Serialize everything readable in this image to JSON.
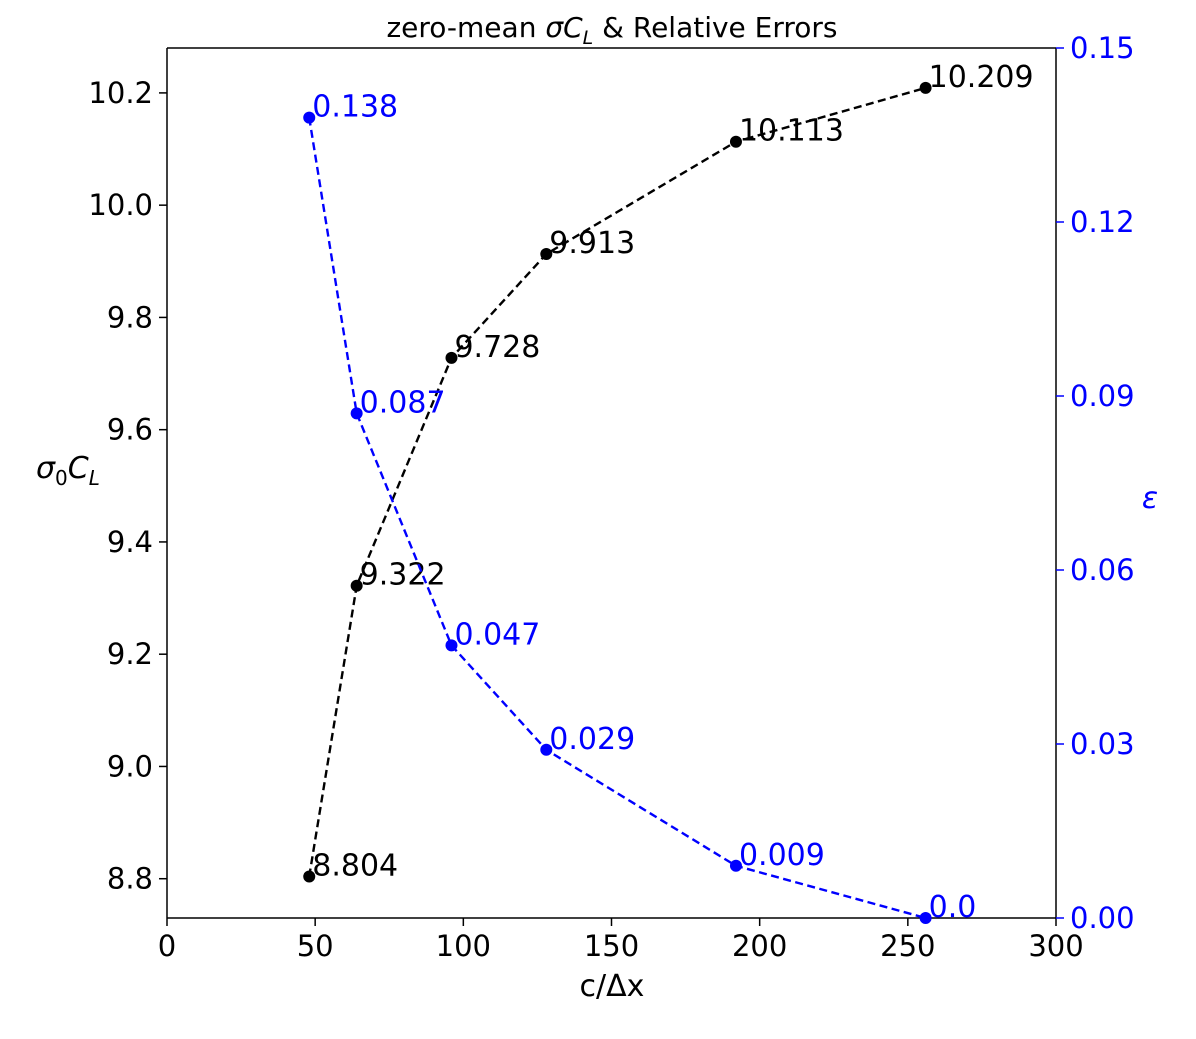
{
  "chart_data": {
    "type": "line",
    "title_parts": {
      "prefix": "zero-mean ",
      "sigma": "σC",
      "subscript": "L",
      "suffix": " & Relative Errors"
    },
    "xlabel": "c/Δx",
    "ylabel_left": {
      "sigma": "σ",
      "sub0": "0",
      "C": "C",
      "subL": "L"
    },
    "ylabel_right": "ε",
    "xlim": [
      0,
      300
    ],
    "ylim_left": [
      8.73,
      10.28
    ],
    "ylim_right": [
      0.0,
      0.15
    ],
    "x_ticks": [
      0,
      50,
      100,
      150,
      200,
      250,
      300
    ],
    "x_tick_labels": [
      "0",
      "50",
      "100",
      "150",
      "200",
      "250",
      "300"
    ],
    "y_left_ticks": [
      8.8,
      9.0,
      9.2,
      9.4,
      9.6,
      9.8,
      10.0,
      10.2
    ],
    "y_left_tick_labels": [
      "8.8",
      "9.0",
      "9.2",
      "9.4",
      "9.6",
      "9.8",
      "10.0",
      "10.2"
    ],
    "y_right_ticks": [
      0.0,
      0.03,
      0.06,
      0.09,
      0.12,
      0.15
    ],
    "y_right_tick_labels": [
      "0.00",
      "0.03",
      "0.06",
      "0.09",
      "0.12",
      "0.15"
    ],
    "colors": {
      "sigma_series": "#000000",
      "error_series": "#0000ff"
    },
    "series": [
      {
        "axis": "left",
        "x": [
          48,
          64,
          96,
          128,
          192,
          256
        ],
        "values": [
          8.804,
          9.322,
          9.728,
          9.913,
          10.113,
          10.209
        ],
        "labels": [
          "8.804",
          "9.322",
          "9.728",
          "9.913",
          "10.113",
          "10.209"
        ]
      },
      {
        "axis": "right",
        "x": [
          48,
          64,
          96,
          128,
          192,
          256
        ],
        "values": [
          0.138,
          0.087,
          0.047,
          0.029,
          0.009,
          0.0
        ],
        "labels": [
          "0.138",
          "0.087",
          "0.047",
          "0.029",
          "0.009",
          "0.0"
        ]
      }
    ],
    "grid": false
  }
}
